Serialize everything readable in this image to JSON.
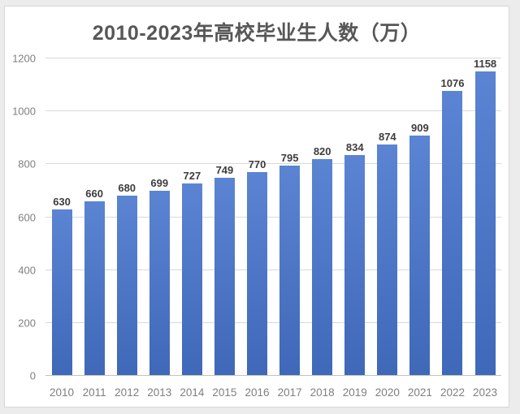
{
  "chart_data": {
    "type": "bar",
    "title": "2010-2023年高校毕业生人数（万）",
    "categories": [
      "2010",
      "2011",
      "2012",
      "2013",
      "2014",
      "2015",
      "2016",
      "2017",
      "2018",
      "2019",
      "2020",
      "2021",
      "2022",
      "2023"
    ],
    "values": [
      630,
      660,
      680,
      699,
      727,
      749,
      770,
      795,
      820,
      834,
      874,
      909,
      1076,
      1158
    ],
    "xlabel": "",
    "ylabel": "",
    "ylim": [
      0,
      1200
    ],
    "y_ticks": [
      0,
      200,
      400,
      600,
      800,
      1000,
      1200
    ],
    "grid": true,
    "legend": "none",
    "data_labels": true
  },
  "colors": {
    "bar_top": "#5b84d3",
    "bar_bottom": "#3f68b8",
    "title_text": "#575757",
    "axis_text": "#7f7f7f",
    "data_label_text": "#3d3d3d",
    "gridline": "#d9d9d9",
    "axis_line": "#c3c3c3",
    "frame_border": "#d7d7d7",
    "card_bg": "#ffffff",
    "page_bg": "#ececec"
  }
}
